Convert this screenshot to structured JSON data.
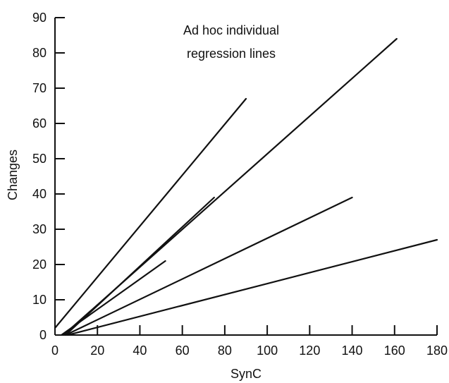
{
  "chart_data": {
    "type": "line",
    "title": "",
    "xlabel": "SynC",
    "ylabel": "Changes",
    "xlim": [
      0,
      180
    ],
    "ylim": [
      0,
      90
    ],
    "xticks": [
      0,
      20,
      40,
      60,
      80,
      100,
      120,
      140,
      160,
      180
    ],
    "yticks": [
      0,
      10,
      20,
      30,
      40,
      50,
      60,
      70,
      80,
      90
    ],
    "grid": false,
    "annotation_lines": [
      "Ad hoc individual",
      "regression lines"
    ],
    "series": [
      {
        "x": [
          0,
          90
        ],
        "y": [
          2,
          67
        ]
      },
      {
        "x": [
          4,
          161
        ],
        "y": [
          0,
          84
        ]
      },
      {
        "x": [
          5,
          75
        ],
        "y": [
          0,
          39
        ]
      },
      {
        "x": [
          3,
          52
        ],
        "y": [
          0,
          21
        ]
      },
      {
        "x": [
          5,
          140
        ],
        "y": [
          0,
          39
        ]
      },
      {
        "x": [
          6,
          180
        ],
        "y": [
          0,
          27
        ]
      }
    ]
  }
}
